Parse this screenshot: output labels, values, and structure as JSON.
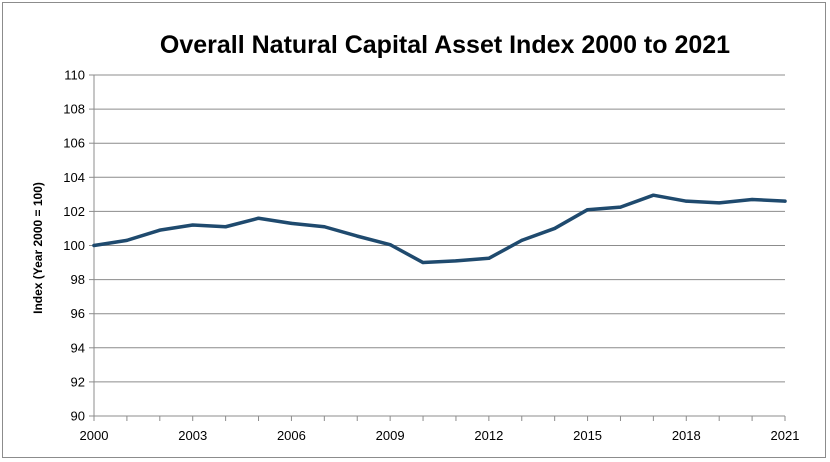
{
  "chart_data": {
    "type": "line",
    "title": "Overall Natural Capital Asset Index 2000 to 2021",
    "xlabel": "",
    "ylabel": "Index (Year 2000 = 100)",
    "ylim": [
      90,
      110
    ],
    "xlim": [
      2000,
      2021
    ],
    "yticks": [
      "90",
      "92",
      "94",
      "96",
      "98",
      "100",
      "102",
      "104",
      "106",
      "108",
      "110"
    ],
    "xticks": [
      "2000",
      "2003",
      "2006",
      "2009",
      "2012",
      "2015",
      "2018",
      "2021"
    ],
    "grid": true,
    "line_color": "#1f4a6e",
    "series": [
      {
        "name": "Overall Natural Capital Asset Index",
        "x": [
          2000,
          2001,
          2002,
          2003,
          2004,
          2005,
          2006,
          2007,
          2008,
          2009,
          2010,
          2011,
          2012,
          2013,
          2014,
          2015,
          2016,
          2017,
          2018,
          2019,
          2020,
          2021
        ],
        "values": [
          100.0,
          100.3,
          100.9,
          101.2,
          101.1,
          101.6,
          101.3,
          101.1,
          100.55,
          100.05,
          99.0,
          99.1,
          99.25,
          100.3,
          101.0,
          102.1,
          102.25,
          102.95,
          102.6,
          102.5,
          102.7,
          102.6
        ]
      }
    ]
  }
}
